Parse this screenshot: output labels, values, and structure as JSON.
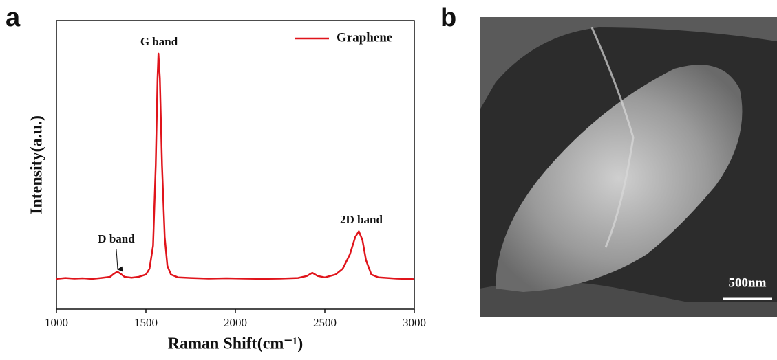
{
  "chart_data": {
    "type": "line",
    "xlabel": "Raman Shift(cm⁻¹)",
    "ylabel": "Intensity(a.u.)",
    "x": [
      1000,
      1050,
      1100,
      1150,
      1200,
      1250,
      1300,
      1320,
      1340,
      1360,
      1380,
      1420,
      1460,
      1500,
      1520,
      1540,
      1555,
      1565,
      1570,
      1578,
      1590,
      1605,
      1620,
      1640,
      1680,
      1750,
      1850,
      1950,
      2050,
      2150,
      2250,
      2350,
      2400,
      2430,
      2460,
      2500,
      2560,
      2600,
      2640,
      2670,
      2690,
      2710,
      2730,
      2760,
      2800,
      2900,
      3000
    ],
    "series": [
      {
        "name": "Graphene",
        "color": "#e0141b",
        "values": [
          10.5,
          10.8,
          10.6,
          10.7,
          10.5,
          10.8,
          11.2,
          12.2,
          13,
          12.2,
          11.2,
          10.9,
          11.2,
          12,
          14,
          22,
          50,
          80,
          88.6,
          80,
          50,
          25,
          15,
          12,
          11,
          10.8,
          10.6,
          10.7,
          10.6,
          10.5,
          10.6,
          10.8,
          11.5,
          12.6,
          11.5,
          11,
          12,
          14,
          19,
          25,
          27,
          24,
          17,
          12,
          11,
          10.6,
          10.4
        ]
      }
    ],
    "xlim": [
      1000,
      3000
    ],
    "xticks": [
      1000,
      1500,
      2000,
      2500,
      3000
    ],
    "ylim": [
      0,
      100
    ],
    "legend": "top-right",
    "annotations": [
      "D band",
      "G band",
      "2D band"
    ]
  },
  "panel_labels": [
    "a",
    "b"
  ],
  "image": {
    "scale_bar": "500nm"
  }
}
